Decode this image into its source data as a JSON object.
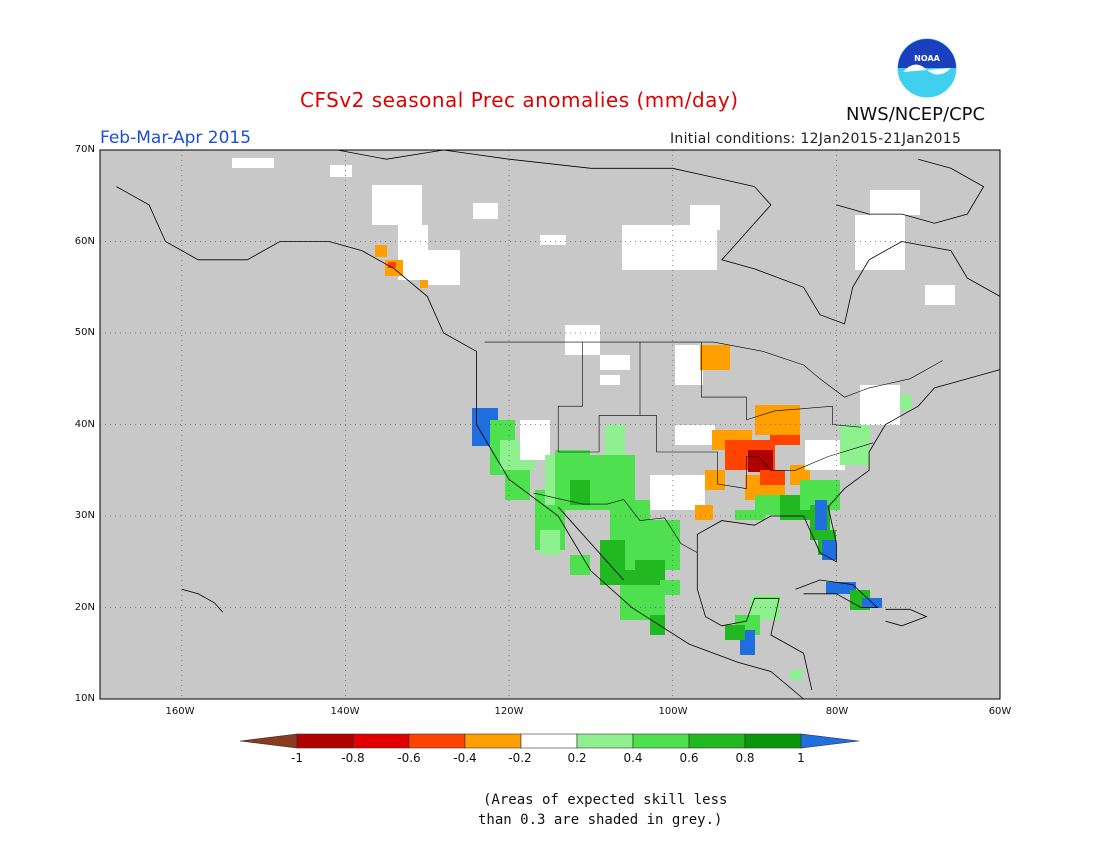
{
  "header": {
    "title": "CFSv2 seasonal Prec anomalies (mm/day)",
    "period": "Feb-Mar-Apr 2015",
    "initial_conditions": "Initial conditions: 12Jan2015-21Jan2015",
    "agency": "NWS/NCEP/CPC",
    "logo_text": "NOAA"
  },
  "map": {
    "lat_labels": [
      "70N",
      "60N",
      "50N",
      "40N",
      "30N",
      "20N",
      "10N"
    ],
    "lon_labels": [
      "160W",
      "140W",
      "120W",
      "100W",
      "80W",
      "60W"
    ],
    "background_color": "#c8c8c8",
    "coast_color": "#000000"
  },
  "colorbar": {
    "labels": [
      "-1",
      "-0.8",
      "-0.6",
      "-0.4",
      "-0.2",
      "0.2",
      "0.4",
      "0.6",
      "0.8",
      "1"
    ],
    "colors": [
      "#8a3a1e",
      "#b00000",
      "#e00000",
      "#ff4400",
      "#ffa000",
      "#ffffff",
      "#8ff08f",
      "#4ee04e",
      "#22b822",
      "#0a960a",
      "#1f6fe0"
    ]
  },
  "footnote": {
    "line1": "(Areas of expected skill less",
    "line2": "than 0.3 are shaded in grey.)"
  }
}
